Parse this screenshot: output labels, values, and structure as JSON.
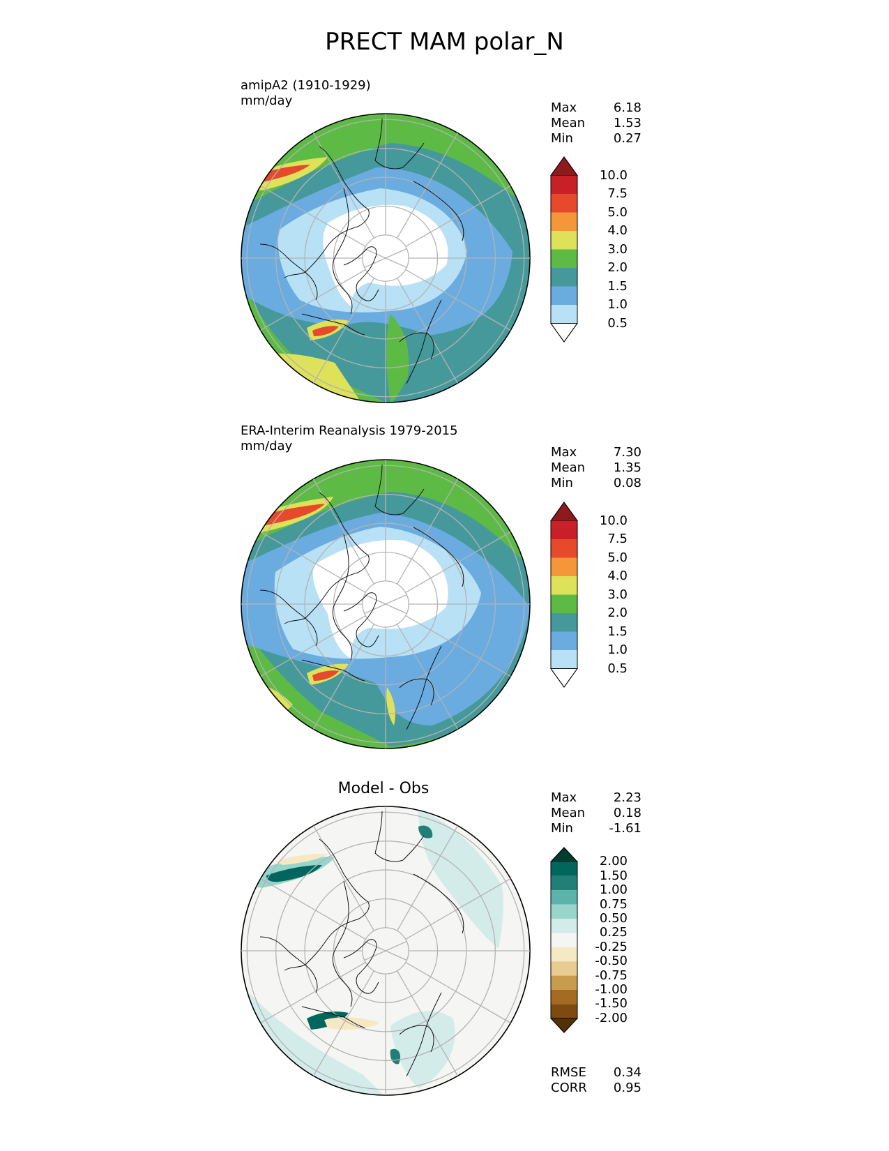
{
  "title": "PRECT MAM polar_N",
  "panels": [
    {
      "id": "model",
      "title_line1": "amipA2 (1910-1929)",
      "title_line2": "mm/day",
      "stats": [
        {
          "label": "Max",
          "value": "6.18"
        },
        {
          "label": "Mean",
          "value": "1.53"
        },
        {
          "label": "Min",
          "value": "0.27"
        }
      ]
    },
    {
      "id": "obs",
      "title_line1": "ERA-Interim Reanalysis 1979-2015",
      "title_line2": "mm/day",
      "stats": [
        {
          "label": "Max",
          "value": "7.30"
        },
        {
          "label": "Mean",
          "value": "1.35"
        },
        {
          "label": "Min",
          "value": "0.08"
        }
      ]
    },
    {
      "id": "diff",
      "title": "Model - Obs",
      "stats": [
        {
          "label": "Max",
          "value": "2.23"
        },
        {
          "label": "Mean",
          "value": "0.18"
        },
        {
          "label": "Min",
          "value": "-1.61"
        }
      ],
      "metrics": [
        {
          "label": "RMSE",
          "value": "0.34"
        },
        {
          "label": "CORR",
          "value": "0.95"
        }
      ]
    }
  ],
  "colorbars": {
    "precip": {
      "labels": [
        "10.0",
        "7.5",
        "5.0",
        "4.0",
        "3.0",
        "2.0",
        "1.5",
        "1.0",
        "0.5"
      ],
      "colors_top_to_bottom": [
        "#8e1a1e",
        "#c91f26",
        "#e6492c",
        "#f5963b",
        "#dde25a",
        "#5dbb45",
        "#45999a",
        "#6aace0",
        "#b8e1f6",
        "#ffffff"
      ]
    },
    "diff": {
      "labels": [
        "2.00",
        "1.50",
        "1.00",
        "0.75",
        "0.50",
        "0.25",
        "-0.25",
        "-0.50",
        "-0.75",
        "-1.00",
        "-1.50",
        "-2.00"
      ],
      "colors_top_to_bottom": [
        "#003c30",
        "#01665e",
        "#217f77",
        "#5ab4ac",
        "#98d5cb",
        "#d3ece9",
        "#f5f5f3",
        "#f6e8c3",
        "#e7cd92",
        "#c99b4d",
        "#a46c23",
        "#7f4a0f",
        "#543005"
      ]
    }
  }
}
